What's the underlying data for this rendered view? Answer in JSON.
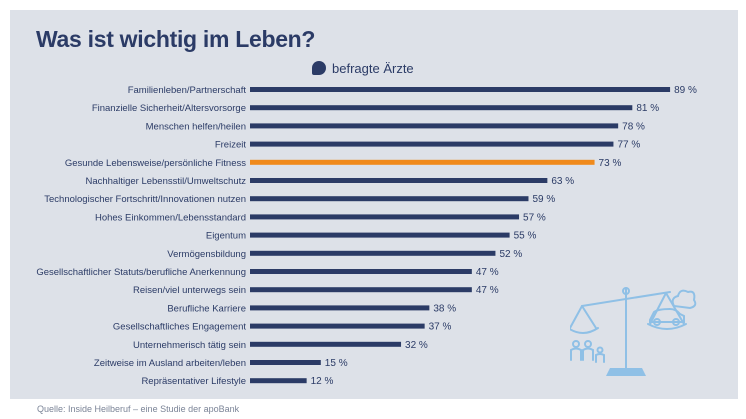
{
  "header": {
    "title": "Was ist wichtig im Leben?",
    "legend_label": "befragte Ärzte"
  },
  "footer": {
    "source": "Quelle: Inside Heilberuf – eine Studie der apoBank"
  },
  "colors": {
    "primary": "#2b3b66",
    "highlight": "#f08a1c",
    "background": "#dde1e8",
    "illustration": "#8fc0e6"
  },
  "chart_data": {
    "type": "bar",
    "orientation": "horizontal",
    "title": "Was ist wichtig im Leben?",
    "series": [
      {
        "name": "befragte Ärzte",
        "values": [
          89,
          81,
          78,
          77,
          73,
          63,
          59,
          57,
          55,
          52,
          47,
          47,
          38,
          37,
          32,
          15,
          12
        ]
      }
    ],
    "categories": [
      "Familienleben/Partnerschaft",
      "Finanzielle Sicherheit/Altersvorsorge",
      "Menschen helfen/heilen",
      "Freizeit",
      "Gesunde Lebensweise/persönliche Fitness",
      "Nachhaltiger Lebensstil/Umweltschutz",
      "Technologischer Fortschritt/Innovationen nutzen",
      "Hohes Einkommen/Lebensstandard",
      "Eigentum",
      "Vermögensbildung",
      "Gesellschaftlicher Statuts/berufliche Anerkennung",
      "Reisen/viel unterwegs sein",
      "Berufliche Karriere",
      "Gesellschaftliches Engagement",
      "Unternehmerisch tätig sein",
      "Zeitweise im Ausland arbeiten/leben",
      "Repräsentativer Lifestyle"
    ],
    "value_labels": [
      "89 %",
      "81 %",
      "78 %",
      "77 %",
      "73 %",
      "63 %",
      "59 %",
      "57 %",
      "55 %",
      "52 %",
      "47 %",
      "47 %",
      "38 %",
      "37 %",
      "32 %",
      "15 %",
      "12 %"
    ],
    "highlighted_category": "Gesunde Lebensweise/persönliche Fitness",
    "xlim": [
      0,
      100
    ],
    "legend_position": "top",
    "grid": false
  }
}
